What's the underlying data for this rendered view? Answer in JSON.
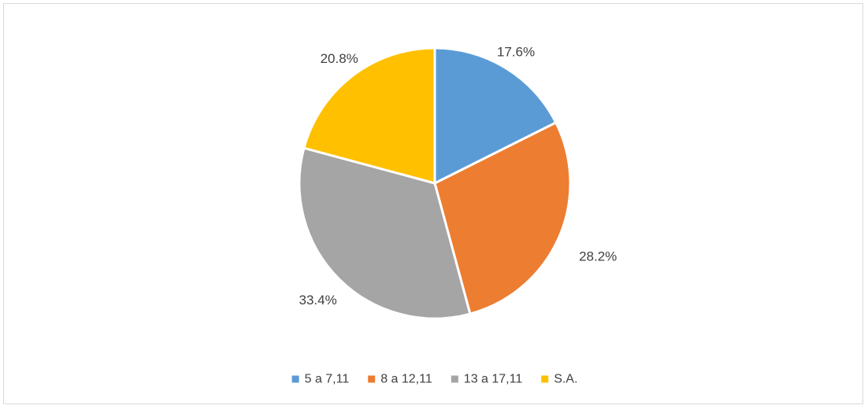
{
  "chart_data": {
    "type": "pie",
    "title": "",
    "categories": [
      "5 a 7,11",
      "8 a 12,11",
      "13 a 17,11",
      "S.A."
    ],
    "values": [
      17.6,
      28.2,
      33.4,
      20.8
    ],
    "labels": [
      "17.6%",
      "28.2%",
      "33.4%",
      "20.8%"
    ],
    "colors": [
      "#5b9bd5",
      "#ed7d31",
      "#a5a5a5",
      "#ffc000"
    ],
    "legend_position": "bottom",
    "start_angle": "12 o'clock",
    "direction": "clockwise"
  }
}
